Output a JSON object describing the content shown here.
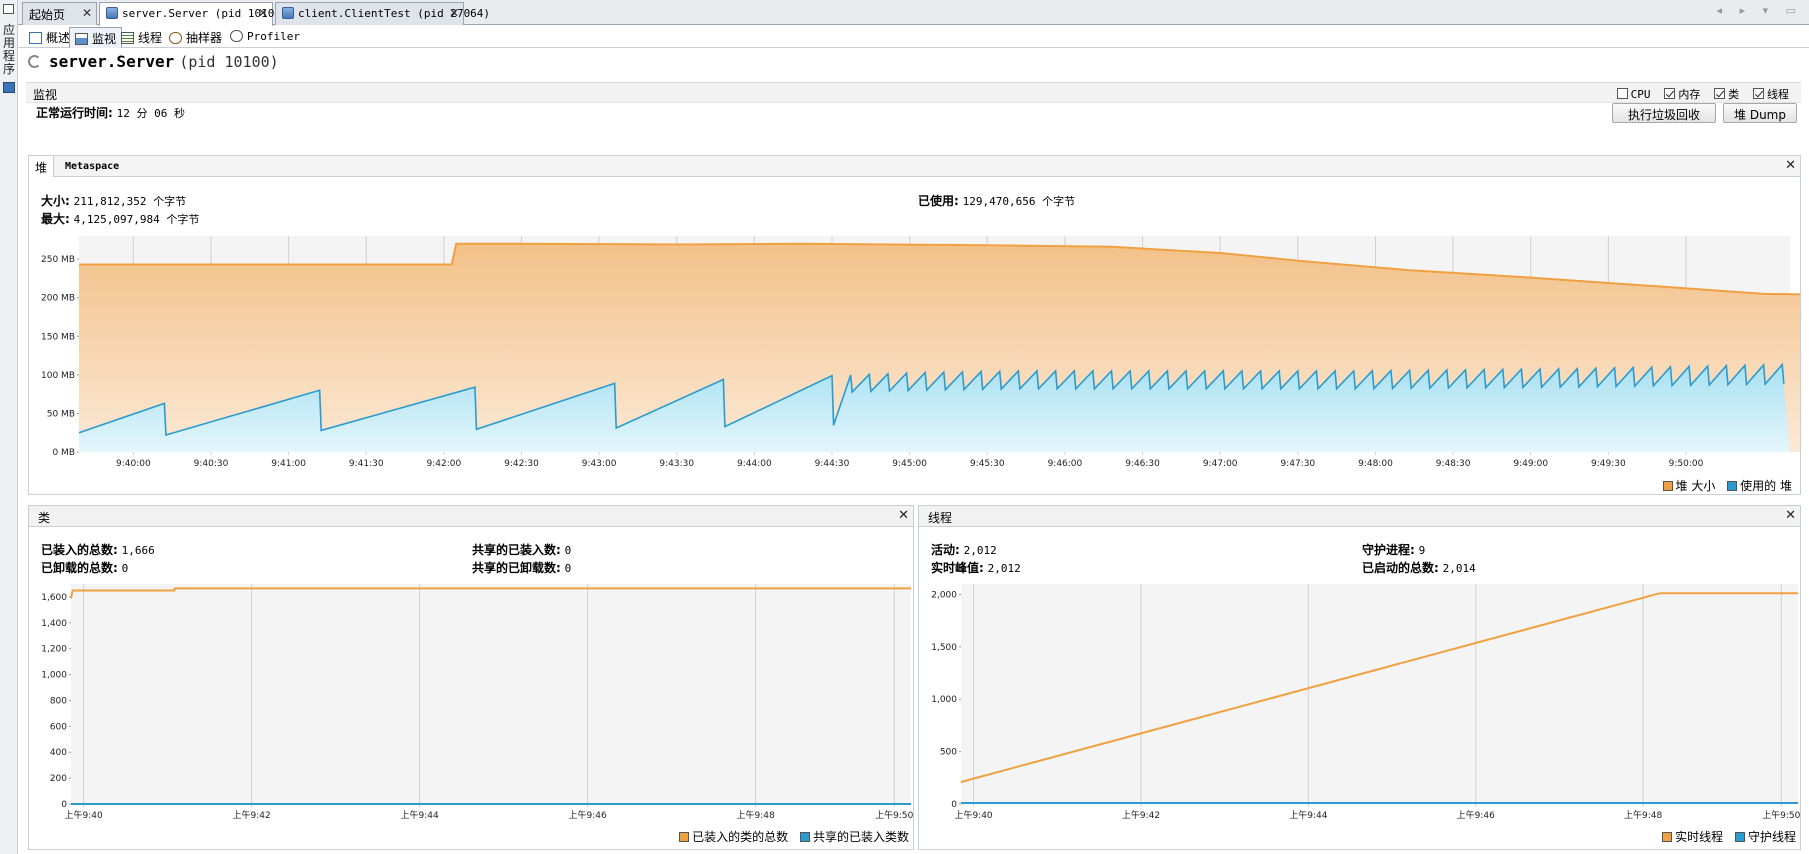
{
  "sidebar": {
    "label": "应用程序"
  },
  "doc_tabs": [
    {
      "label": "起始页",
      "active": false
    },
    {
      "label": "server.Server (pid 10100)",
      "active": true
    },
    {
      "label": "client.ClientTest (pid 27064)",
      "active": false
    }
  ],
  "nav_arrows": "◂ ▸ ▾ ▭",
  "sub_tabs": [
    {
      "label": "概述",
      "active": false,
      "icon": "overview-icon"
    },
    {
      "label": "监视",
      "active": true,
      "icon": "monitor-icon"
    },
    {
      "label": "线程",
      "active": false,
      "icon": "threads-icon"
    },
    {
      "label": "抽样器",
      "active": false,
      "icon": "sampler-icon"
    },
    {
      "label": "Profiler",
      "active": false,
      "icon": "profiler-icon"
    }
  ],
  "page": {
    "title": "server.Server",
    "pid": "(pid 10100)"
  },
  "monitor": {
    "label": "监视",
    "checks": [
      {
        "label": "CPU",
        "checked": false
      },
      {
        "label": "内存",
        "checked": true
      },
      {
        "label": "类",
        "checked": true
      },
      {
        "label": "线程",
        "checked": true
      }
    ],
    "uptime_label": "正常运行时间:",
    "uptime_value": "12 分 06 秒",
    "gc_button": "执行垃圾回收",
    "dump_button": "堆 Dump"
  },
  "heap": {
    "tab_active": "堆",
    "tab_inactive": "Metaspace",
    "size_label": "大小:",
    "size_value": "211,812,352 个字节",
    "max_label": "最大:",
    "max_value": "4,125,097,984 个字节",
    "used_label": "已使用:",
    "used_value": "129,470,656 个字节",
    "legend": [
      {
        "label": "堆 大小",
        "color": "#f0a040"
      },
      {
        "label": "使用的 堆",
        "color": "#2a9bd0"
      }
    ]
  },
  "classes": {
    "title": "类",
    "loaded_label": "已装入的总数:",
    "loaded_value": "1,666",
    "unloaded_label": "已卸载的总数:",
    "unloaded_value": "0",
    "shared_loaded_label": "共享的已装入数:",
    "shared_loaded_value": "0",
    "shared_unloaded_label": "共享的已卸载数:",
    "shared_unloaded_value": "0",
    "legend": [
      {
        "label": "已装入的类的总数",
        "color": "#f0a040"
      },
      {
        "label": "共享的已装入类数",
        "color": "#2a9bd0"
      }
    ]
  },
  "threads": {
    "title": "线程",
    "live_label": "活动:",
    "live_value": "2,012",
    "peak_label": "实时峰值:",
    "peak_value": "2,012",
    "daemon_label": "守护进程:",
    "daemon_value": "9",
    "started_label": "已启动的总数:",
    "started_value": "2,014",
    "legend": [
      {
        "label": "实时线程",
        "color": "#f0a040"
      },
      {
        "label": "守护线程",
        "color": "#2a9bd0"
      }
    ]
  },
  "chart_data": [
    {
      "type": "area",
      "name": "heap",
      "x_ticks": [
        "9:40:00",
        "9:40:30",
        "9:41:00",
        "9:41:30",
        "9:42:00",
        "9:42:30",
        "9:43:00",
        "9:43:30",
        "9:44:00",
        "9:44:30",
        "9:45:00",
        "9:45:30",
        "9:46:00",
        "9:46:30",
        "9:47:00",
        "9:47:30",
        "9:48:00",
        "9:48:30",
        "9:49:00",
        "9:49:30",
        "9:50:00"
      ],
      "y_ticks": [
        "0 MB",
        "50 MB",
        "100 MB",
        "150 MB",
        "200 MB",
        "250 MB"
      ],
      "ylim": [
        0,
        280
      ],
      "xlim_minutes": [
        9.65,
        20.67
      ],
      "series": [
        {
          "name": "堆 大小",
          "color": "#f0a040",
          "points": [
            [
              9.65,
              243
            ],
            [
              12.05,
              243
            ],
            [
              12.08,
              270
            ],
            [
              12.45,
              270
            ],
            [
              13.5,
              269
            ],
            [
              14.3,
              270
            ],
            [
              15.5,
              268
            ],
            [
              16.3,
              266
            ],
            [
              17.0,
              258
            ],
            [
              17.5,
              248
            ],
            [
              18.2,
              236
            ],
            [
              19.0,
              226
            ],
            [
              19.8,
              215
            ],
            [
              20.5,
              205
            ],
            [
              21.2,
              203
            ],
            [
              22.0,
              201
            ],
            [
              22.4,
              198
            ],
            [
              22.67,
              197
            ]
          ]
        },
        {
          "name": "使用的 堆",
          "color": "#2a9bd0",
          "peaks": [
            [
              9.65,
              25
            ],
            [
              10.2,
              63
            ],
            [
              11.2,
              80
            ],
            [
              12.2,
              84
            ],
            [
              13.1,
              89
            ],
            [
              13.8,
              94
            ],
            [
              14.5,
              99
            ],
            [
              15.1,
              103
            ],
            [
              15.7,
              105
            ],
            [
              16.25,
              105
            ],
            [
              16.8,
              105
            ],
            [
              17.3,
              105
            ],
            [
              17.8,
              105
            ],
            [
              18.3,
              106
            ],
            [
              18.8,
              107
            ],
            [
              19.3,
              108
            ],
            [
              19.8,
              110
            ],
            [
              20.3,
              112
            ],
            [
              20.8,
              114
            ],
            [
              21.3,
              116
            ],
            [
              21.8,
              118
            ],
            [
              22.3,
              120
            ],
            [
              22.67,
              123
            ]
          ]
        }
      ]
    },
    {
      "type": "line",
      "name": "classes",
      "x_ticks": [
        "上午9:40",
        "上午9:42",
        "上午9:44",
        "上午9:46",
        "上午9:48",
        "上午9:50"
      ],
      "y_ticks": [
        "0",
        "200",
        "400",
        "600",
        "800",
        "1,000",
        "1,200",
        "1,400",
        "1,600"
      ],
      "ylim": [
        0,
        1700
      ],
      "series": [
        {
          "name": "已装入的类的总数",
          "color": "#f0a040",
          "points": [
            [
              0,
              1590
            ],
            [
              0.2,
              1650
            ],
            [
              12.3,
              1650
            ],
            [
              12.35,
              1666
            ],
            [
              100,
              1666
            ]
          ]
        },
        {
          "name": "共享的已装入类数",
          "color": "#2a9bd0",
          "points": [
            [
              0,
              0
            ],
            [
              100,
              0
            ]
          ]
        }
      ]
    },
    {
      "type": "line",
      "name": "threads",
      "x_ticks": [
        "上午9:40",
        "上午9:42",
        "上午9:44",
        "上午9:46",
        "上午9:48",
        "上午9:50"
      ],
      "y_ticks": [
        "0",
        "500",
        "1,000",
        "1,500",
        "2,000"
      ],
      "ylim": [
        0,
        2100
      ],
      "series": [
        {
          "name": "实时线程",
          "color": "#f0a040",
          "points": [
            [
              0,
              210
            ],
            [
              83.5,
              2012
            ],
            [
              100,
              2012
            ]
          ]
        },
        {
          "name": "守护线程",
          "color": "#2a9bd0",
          "points": [
            [
              0,
              9
            ],
            [
              100,
              9
            ]
          ]
        }
      ]
    }
  ]
}
